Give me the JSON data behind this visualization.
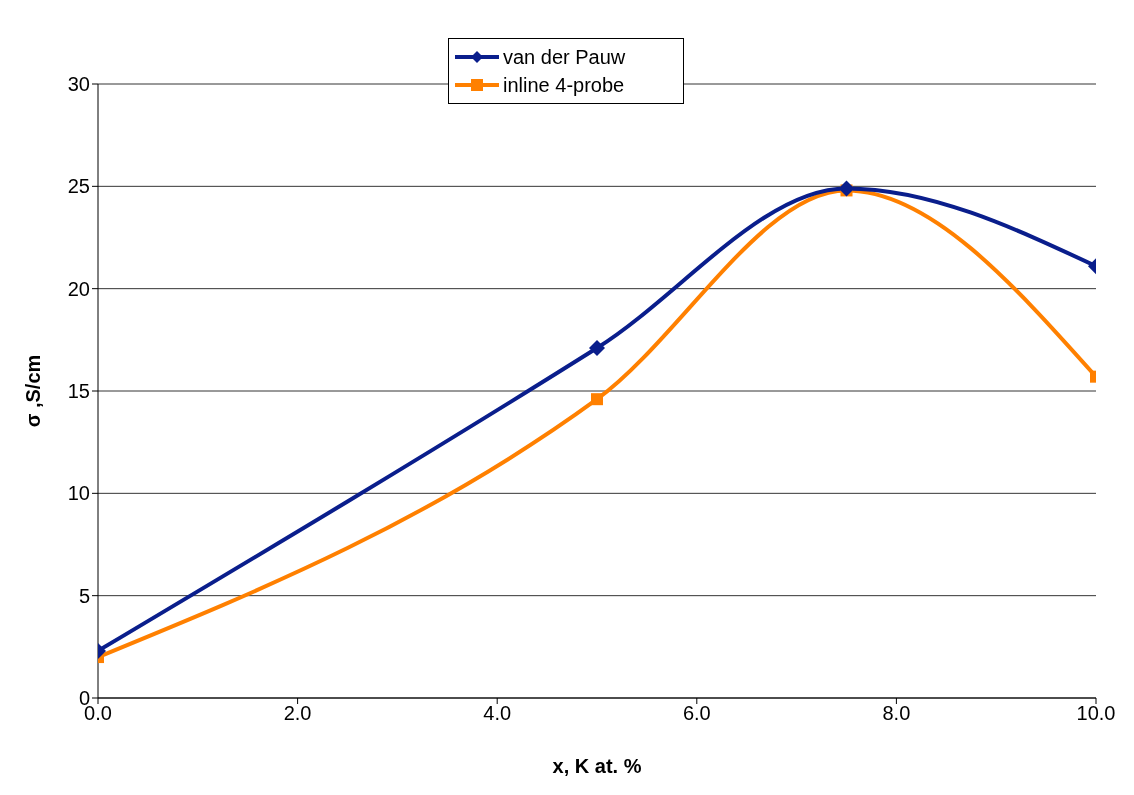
{
  "chart_data": {
    "type": "line",
    "xlabel": "x, K at. %",
    "ylabel": "σ ,S/cm",
    "x": [
      0,
      5,
      7.5,
      10
    ],
    "series": [
      {
        "name": "van der Pauw",
        "color": "#0a1e8c",
        "values": [
          2.3,
          17.1,
          24.9,
          21.1
        ],
        "marker": "diamond"
      },
      {
        "name": "inline 4-probe",
        "color": "#ff8000",
        "values": [
          2.0,
          14.6,
          24.8,
          15.7
        ],
        "marker": "square"
      }
    ],
    "xlim": [
      0,
      10
    ],
    "xticks": [
      {
        "value": 0,
        "label": "0.0"
      },
      {
        "value": 2,
        "label": "2.0"
      },
      {
        "value": 4,
        "label": "4.0"
      },
      {
        "value": 6,
        "label": "6.0"
      },
      {
        "value": 8,
        "label": "8.0"
      },
      {
        "value": 10,
        "label": "10.0"
      }
    ],
    "ylim": [
      0,
      30
    ],
    "yticks": [
      0,
      5,
      10,
      15,
      20,
      25,
      30
    ],
    "grid": "y",
    "legend": "top",
    "line_style": "solid"
  }
}
